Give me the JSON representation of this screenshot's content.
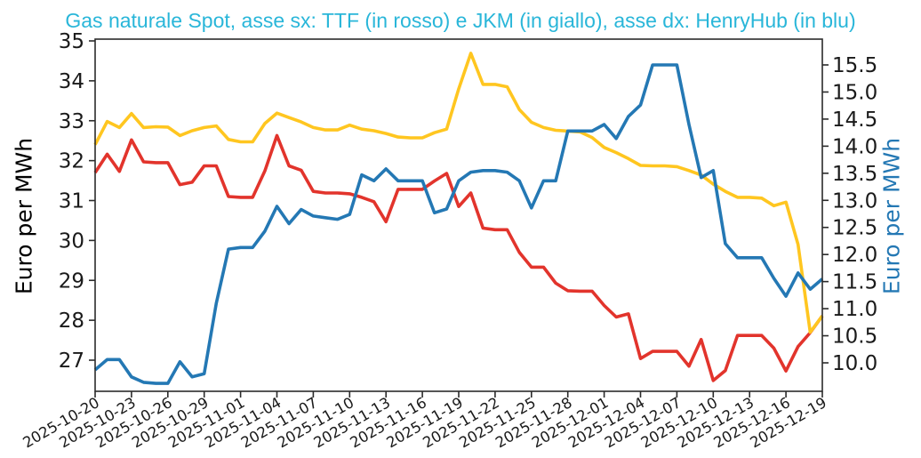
{
  "title": {
    "text": "Gas naturale Spot, asse sx: TTF (in rosso) e JKM (in giallo), asse dx: HenryHub (in blu)",
    "color": "#29b6d9"
  },
  "chart_data": {
    "type": "line",
    "dual_axis": true,
    "grid": false,
    "legend_position": "none",
    "x": [
      "2025-10-20",
      "2025-10-21",
      "2025-10-22",
      "2025-10-23",
      "2025-10-24",
      "2025-10-25",
      "2025-10-26",
      "2025-10-27",
      "2025-10-28",
      "2025-10-29",
      "2025-10-30",
      "2025-10-31",
      "2025-11-01",
      "2025-11-02",
      "2025-11-03",
      "2025-11-04",
      "2025-11-05",
      "2025-11-06",
      "2025-11-07",
      "2025-11-08",
      "2025-11-09",
      "2025-11-10",
      "2025-11-11",
      "2025-11-12",
      "2025-11-13",
      "2025-11-14",
      "2025-11-15",
      "2025-11-16",
      "2025-11-17",
      "2025-11-18",
      "2025-11-19",
      "2025-11-20",
      "2025-11-21",
      "2025-11-22",
      "2025-11-23",
      "2025-11-24",
      "2025-11-25",
      "2025-11-26",
      "2025-11-27",
      "2025-11-28",
      "2025-11-29",
      "2025-11-30",
      "2025-12-01",
      "2025-12-02",
      "2025-12-03",
      "2025-12-04",
      "2025-12-05",
      "2025-12-06",
      "2025-12-07",
      "2025-12-08",
      "2025-12-09",
      "2025-12-10",
      "2025-12-11",
      "2025-12-12",
      "2025-12-13",
      "2025-12-14",
      "2025-12-15",
      "2025-12-16",
      "2025-12-17",
      "2025-12-18",
      "2025-12-19"
    ],
    "x_tick_labels": [
      "2025-10-20",
      "2025-10-23",
      "2025-10-26",
      "2025-10-29",
      "2025-11-01",
      "2025-11-04",
      "2025-11-07",
      "2025-11-10",
      "2025-11-13",
      "2025-11-16",
      "2025-11-19",
      "2025-11-22",
      "2025-11-25",
      "2025-11-28",
      "2025-12-01",
      "2025-12-04",
      "2025-12-07",
      "2025-12-10",
      "2025-12-13",
      "2025-12-16",
      "2025-12-19"
    ],
    "left_axis": {
      "label": "Euro per MWh",
      "ticks": [
        27,
        28,
        29,
        30,
        31,
        32,
        33,
        34,
        35
      ],
      "range": [
        26.2,
        35.05
      ],
      "label_color": "#000000",
      "tick_color": "#1a1a1a"
    },
    "right_axis": {
      "label": "Euro per MWh",
      "ticks": [
        10.0,
        10.5,
        11.0,
        11.5,
        12.0,
        12.5,
        13.0,
        13.5,
        14.0,
        14.5,
        15.0,
        15.5
      ],
      "range": [
        9.45,
        15.95
      ],
      "label_color": "#2478b4",
      "tick_color": "#1a1a1a"
    },
    "series": [
      {
        "name": "TTF",
        "axis": "left",
        "color": "#e2342c",
        "values": [
          31.7,
          32.16,
          31.73,
          32.52,
          31.97,
          31.95,
          31.95,
          31.4,
          31.46,
          31.87,
          31.87,
          31.1,
          31.08,
          31.08,
          31.74,
          32.63,
          31.87,
          31.76,
          31.23,
          31.19,
          31.19,
          31.17,
          31.08,
          30.97,
          30.47,
          31.28,
          31.28,
          31.28,
          31.49,
          31.68,
          30.85,
          31.19,
          30.31,
          30.27,
          30.27,
          29.7,
          29.33,
          29.33,
          28.93,
          28.74,
          28.73,
          28.73,
          28.37,
          28.08,
          28.16,
          27.04,
          27.22,
          27.22,
          27.22,
          26.85,
          27.52,
          26.49,
          26.74,
          27.62,
          27.62,
          27.62,
          27.3,
          26.73,
          27.34,
          27.69,
          28.11
        ]
      },
      {
        "name": "JKM",
        "axis": "left",
        "color": "#ffc620",
        "values": [
          32.4,
          32.98,
          32.83,
          33.18,
          32.83,
          32.85,
          32.84,
          32.63,
          32.75,
          32.83,
          32.87,
          32.53,
          32.47,
          32.47,
          32.93,
          33.19,
          33.08,
          32.97,
          32.83,
          32.77,
          32.77,
          32.89,
          32.79,
          32.75,
          32.68,
          32.59,
          32.57,
          32.57,
          32.7,
          32.79,
          33.8,
          34.69,
          33.91,
          33.91,
          33.85,
          33.28,
          32.96,
          32.83,
          32.76,
          32.74,
          32.72,
          32.58,
          32.33,
          32.2,
          32.05,
          31.88,
          31.87,
          31.87,
          31.85,
          31.75,
          31.64,
          31.41,
          31.23,
          31.08,
          31.08,
          31.06,
          30.87,
          30.96,
          29.9,
          27.7,
          28.11
        ]
      },
      {
        "name": "HenryHub",
        "axis": "right",
        "color": "#2478b4",
        "values": [
          9.87,
          10.06,
          10.06,
          9.74,
          9.64,
          9.62,
          9.62,
          10.02,
          9.74,
          9.8,
          11.1,
          12.1,
          12.13,
          12.13,
          12.43,
          12.89,
          12.57,
          12.83,
          12.71,
          12.68,
          12.65,
          12.74,
          13.47,
          13.36,
          13.58,
          13.36,
          13.36,
          13.36,
          12.77,
          12.84,
          13.36,
          13.52,
          13.55,
          13.55,
          13.52,
          13.36,
          12.86,
          13.36,
          13.36,
          14.28,
          14.28,
          14.28,
          14.4,
          14.14,
          14.55,
          14.76,
          15.5,
          15.5,
          15.5,
          14.4,
          13.42,
          13.55,
          12.2,
          11.94,
          11.94,
          11.94,
          11.56,
          11.23,
          11.66,
          11.36,
          11.55
        ]
      }
    ],
    "style": {
      "spine_color": "#2b2b2b",
      "line_width": 3.6,
      "x_tick_rotation_deg": 30
    }
  }
}
